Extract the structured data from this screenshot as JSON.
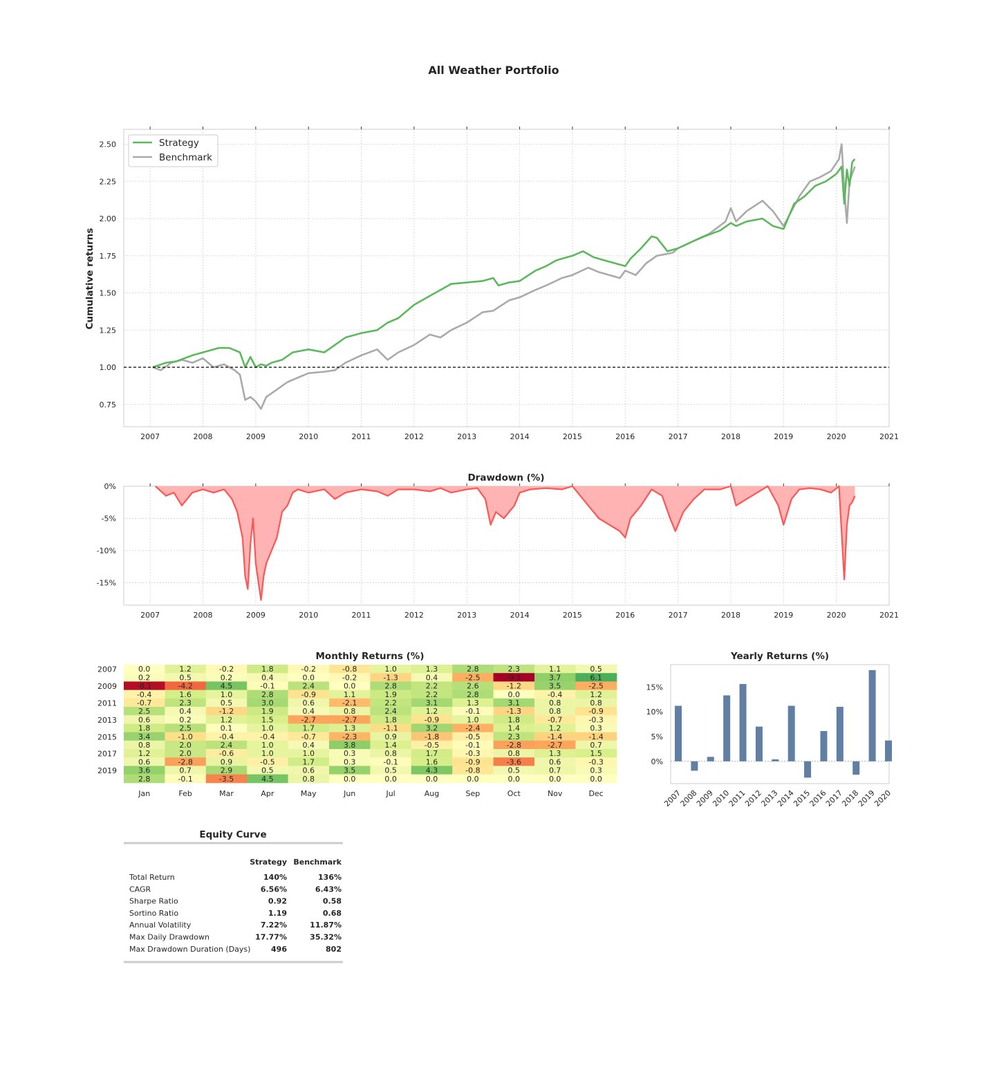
{
  "title": "All Weather Portfolio",
  "colors": {
    "strategy": "#5cb85c",
    "benchmark": "#aaaaaa",
    "drawdown_line": "#ff5555",
    "drawdown_fill": "#ffb3b3",
    "yearly_bar": "#617fa3",
    "strategy_header": "#008000",
    "benchmark_header": "#808080",
    "drawdown_value": "#ff0000"
  },
  "chart_data": [
    {
      "id": "cumulative",
      "type": "line",
      "title": "",
      "ylabel": "Cumulative returns",
      "xlabel": "",
      "xlim": [
        2006.5,
        2021.0
      ],
      "ylim": [
        0.6,
        2.6
      ],
      "xticks": [
        "2007",
        "2008",
        "2009",
        "2010",
        "2011",
        "2012",
        "2013",
        "2014",
        "2015",
        "2016",
        "2017",
        "2018",
        "2019",
        "2020",
        "2021"
      ],
      "yticks": [
        "0.75",
        "1.00",
        "1.25",
        "1.50",
        "1.75",
        "2.00",
        "2.25",
        "2.50"
      ],
      "baseline": 1.0,
      "grid": true,
      "legend": "top-left",
      "series": [
        {
          "name": "Strategy",
          "x": [
            2007.05,
            2007.3,
            2007.5,
            2007.8,
            2008.0,
            2008.3,
            2008.5,
            2008.7,
            2008.8,
            2008.9,
            2009.0,
            2009.1,
            2009.2,
            2009.3,
            2009.5,
            2009.7,
            2010.0,
            2010.3,
            2010.5,
            2010.7,
            2011.0,
            2011.3,
            2011.5,
            2011.7,
            2012.0,
            2012.3,
            2012.5,
            2012.7,
            2013.0,
            2013.3,
            2013.5,
            2013.6,
            2013.8,
            2014.0,
            2014.3,
            2014.5,
            2014.7,
            2015.0,
            2015.2,
            2015.4,
            2015.6,
            2015.8,
            2016.0,
            2016.1,
            2016.3,
            2016.5,
            2016.6,
            2016.8,
            2017.0,
            2017.3,
            2017.5,
            2017.8,
            2018.0,
            2018.1,
            2018.3,
            2018.6,
            2018.8,
            2019.0,
            2019.2,
            2019.4,
            2019.6,
            2019.8,
            2020.0,
            2020.1,
            2020.15,
            2020.2,
            2020.25,
            2020.3,
            2020.35
          ],
          "y": [
            1.0,
            1.03,
            1.04,
            1.08,
            1.1,
            1.13,
            1.13,
            1.1,
            1.0,
            1.07,
            1.0,
            1.02,
            1.01,
            1.03,
            1.05,
            1.1,
            1.12,
            1.1,
            1.15,
            1.2,
            1.23,
            1.25,
            1.3,
            1.33,
            1.42,
            1.48,
            1.52,
            1.56,
            1.57,
            1.58,
            1.6,
            1.55,
            1.57,
            1.58,
            1.65,
            1.68,
            1.72,
            1.75,
            1.78,
            1.74,
            1.72,
            1.7,
            1.68,
            1.73,
            1.8,
            1.88,
            1.87,
            1.78,
            1.8,
            1.85,
            1.88,
            1.92,
            1.97,
            1.95,
            1.98,
            2.0,
            1.95,
            1.93,
            2.1,
            2.15,
            2.22,
            2.25,
            2.3,
            2.35,
            2.1,
            2.33,
            2.22,
            2.38,
            2.4
          ]
        },
        {
          "name": "Benchmark",
          "x": [
            2007.05,
            2007.2,
            2007.4,
            2007.6,
            2007.8,
            2008.0,
            2008.2,
            2008.4,
            2008.6,
            2008.7,
            2008.8,
            2008.9,
            2009.0,
            2009.1,
            2009.2,
            2009.4,
            2009.6,
            2009.8,
            2010.0,
            2010.3,
            2010.5,
            2010.7,
            2011.0,
            2011.3,
            2011.5,
            2011.7,
            2012.0,
            2012.3,
            2012.5,
            2012.7,
            2013.0,
            2013.3,
            2013.5,
            2013.8,
            2014.0,
            2014.3,
            2014.5,
            2014.8,
            2015.0,
            2015.3,
            2015.5,
            2015.7,
            2015.9,
            2016.0,
            2016.2,
            2016.4,
            2016.6,
            2016.9,
            2017.0,
            2017.3,
            2017.6,
            2017.9,
            2018.0,
            2018.1,
            2018.3,
            2018.6,
            2018.8,
            2019.0,
            2019.3,
            2019.5,
            2019.7,
            2019.9,
            2020.05,
            2020.1,
            2020.15,
            2020.2,
            2020.25,
            2020.3,
            2020.35
          ],
          "y": [
            1.0,
            0.98,
            1.03,
            1.05,
            1.03,
            1.06,
            1.0,
            1.02,
            0.98,
            0.95,
            0.78,
            0.8,
            0.77,
            0.72,
            0.8,
            0.85,
            0.9,
            0.93,
            0.96,
            0.97,
            0.98,
            1.03,
            1.08,
            1.12,
            1.05,
            1.1,
            1.15,
            1.22,
            1.2,
            1.25,
            1.3,
            1.37,
            1.38,
            1.45,
            1.47,
            1.52,
            1.55,
            1.6,
            1.62,
            1.67,
            1.64,
            1.62,
            1.6,
            1.65,
            1.62,
            1.7,
            1.75,
            1.77,
            1.8,
            1.85,
            1.9,
            1.98,
            2.07,
            1.98,
            2.05,
            2.12,
            2.05,
            1.95,
            2.15,
            2.25,
            2.28,
            2.32,
            2.4,
            2.5,
            2.2,
            1.97,
            2.25,
            2.3,
            2.35
          ]
        }
      ]
    },
    {
      "id": "drawdown",
      "type": "area",
      "title": "Drawdown (%)",
      "xlim": [
        2006.5,
        2021.0
      ],
      "ylim": [
        -18.5,
        0
      ],
      "xticks": [
        "2007",
        "2008",
        "2009",
        "2010",
        "2011",
        "2012",
        "2013",
        "2014",
        "2015",
        "2016",
        "2017",
        "2018",
        "2019",
        "2020",
        "2021"
      ],
      "yticks": [
        "0%",
        "-5%",
        "-10%",
        "-15%"
      ],
      "grid": true,
      "x": [
        2007.1,
        2007.3,
        2007.45,
        2007.6,
        2007.8,
        2008.0,
        2008.2,
        2008.4,
        2008.55,
        2008.65,
        2008.75,
        2008.8,
        2008.85,
        2008.9,
        2008.95,
        2009.0,
        2009.1,
        2009.15,
        2009.2,
        2009.3,
        2009.4,
        2009.5,
        2009.6,
        2009.7,
        2009.8,
        2010.0,
        2010.3,
        2010.5,
        2010.7,
        2011.0,
        2011.3,
        2011.5,
        2011.7,
        2012.0,
        2012.3,
        2012.5,
        2012.7,
        2013.0,
        2013.2,
        2013.35,
        2013.45,
        2013.55,
        2013.7,
        2013.9,
        2014.0,
        2014.2,
        2014.5,
        2014.8,
        2015.0,
        2015.1,
        2015.3,
        2015.5,
        2015.7,
        2015.9,
        2016.0,
        2016.1,
        2016.3,
        2016.5,
        2016.7,
        2016.85,
        2016.95,
        2017.1,
        2017.3,
        2017.5,
        2017.8,
        2018.0,
        2018.1,
        2018.3,
        2018.5,
        2018.7,
        2018.9,
        2019.0,
        2019.15,
        2019.3,
        2019.5,
        2019.7,
        2019.9,
        2020.05,
        2020.15,
        2020.2,
        2020.25,
        2020.3,
        2020.35
      ],
      "values": [
        0,
        -1.5,
        -1,
        -3,
        -1,
        -0.5,
        -1,
        -0.5,
        -2,
        -4,
        -8,
        -14,
        -16,
        -9,
        -5,
        -12,
        -17.7,
        -14,
        -12,
        -10,
        -8,
        -4,
        -3,
        -1,
        -0.5,
        -1,
        -0.5,
        -2,
        -1,
        -0.5,
        -0.8,
        -1.5,
        -0.5,
        -0.5,
        -0.8,
        -0.3,
        -1.0,
        -0.5,
        -0.3,
        -2,
        -6,
        -4,
        -5,
        -3,
        -1,
        -0.5,
        -0.3,
        -0.5,
        0,
        -1,
        -3,
        -5,
        -6,
        -7,
        -8,
        -5,
        -3,
        -0.5,
        -1.5,
        -5,
        -7,
        -4,
        -2,
        -0.5,
        -0.5,
        0,
        -3,
        -2,
        -1,
        0,
        -3,
        -6,
        -2,
        -0.5,
        -0.3,
        -0.5,
        -1,
        0,
        -14.5,
        -6,
        -3,
        -2.5,
        -1.5
      ]
    },
    {
      "id": "monthly",
      "type": "heatmap",
      "title": "Monthly Returns (%)",
      "columns": [
        "Jan",
        "Feb",
        "Mar",
        "Apr",
        "May",
        "Jun",
        "Jul",
        "Aug",
        "Sep",
        "Oct",
        "Nov",
        "Dec"
      ],
      "row_labels": [
        "2007",
        "",
        "2009",
        "",
        "2011",
        "",
        "2013",
        "",
        "2015",
        "",
        "2017",
        "",
        "2019",
        ""
      ],
      "values": [
        [
          0.0,
          1.2,
          -0.2,
          1.8,
          -0.2,
          -0.8,
          1.0,
          1.3,
          2.8,
          2.3,
          1.1,
          0.5
        ],
        [
          0.2,
          0.5,
          0.2,
          0.4,
          0.0,
          -0.2,
          -1.3,
          0.4,
          -2.5,
          -9.1,
          3.7,
          6.1
        ],
        [
          -8.1,
          -4.2,
          4.5,
          -0.1,
          2.4,
          -0.0,
          2.8,
          2.2,
          2.6,
          -1.2,
          3.5,
          -2.5
        ],
        [
          -0.4,
          1.6,
          1.0,
          2.8,
          -0.9,
          1.1,
          1.9,
          2.2,
          2.8,
          0.0,
          -0.4,
          1.2
        ],
        [
          -0.7,
          2.3,
          0.5,
          3.0,
          0.6,
          -2.1,
          2.2,
          3.1,
          1.3,
          3.1,
          0.8,
          0.8
        ],
        [
          2.5,
          0.4,
          -1.2,
          1.9,
          0.4,
          0.8,
          2.4,
          1.2,
          -0.1,
          -1.3,
          0.8,
          -0.9
        ],
        [
          0.6,
          0.2,
          1.2,
          1.5,
          -2.7,
          -2.7,
          1.8,
          -0.9,
          1.0,
          1.8,
          -0.7,
          -0.3
        ],
        [
          1.8,
          2.5,
          0.1,
          1.0,
          1.7,
          1.3,
          -1.1,
          3.2,
          -2.4,
          1.4,
          1.2,
          0.3
        ],
        [
          3.4,
          -1.0,
          -0.4,
          -0.4,
          -0.7,
          -2.3,
          0.9,
          -1.8,
          -0.5,
          2.3,
          -1.4,
          -1.4
        ],
        [
          0.8,
          2.0,
          2.4,
          1.0,
          0.4,
          3.8,
          1.4,
          -0.5,
          -0.1,
          -2.8,
          -2.7,
          0.7
        ],
        [
          1.2,
          2.0,
          -0.6,
          1.0,
          1.0,
          0.3,
          0.8,
          1.7,
          -0.3,
          0.8,
          1.3,
          1.5
        ],
        [
          0.6,
          -2.8,
          0.9,
          -0.5,
          1.7,
          0.3,
          -0.1,
          1.6,
          -0.9,
          -3.6,
          0.6,
          -0.3
        ],
        [
          3.6,
          0.7,
          2.9,
          0.5,
          0.6,
          3.5,
          0.5,
          4.3,
          -0.8,
          0.5,
          0.7,
          0.3
        ],
        [
          2.8,
          -0.1,
          -3.5,
          4.5,
          0.8,
          0.0,
          0.0,
          0.0,
          0.0,
          0.0,
          0.0,
          0.0
        ]
      ]
    },
    {
      "id": "yearly",
      "type": "bar",
      "title": "Yearly Returns (%)",
      "categories": [
        "2007",
        "2008",
        "2009",
        "2010",
        "2011",
        "2012",
        "2013",
        "2014",
        "2015",
        "2016",
        "2017",
        "2018",
        "2019",
        "2020"
      ],
      "values": [
        11.2,
        -1.9,
        0.9,
        13.3,
        15.6,
        7.0,
        0.4,
        11.2,
        -3.3,
        6.1,
        11.0,
        -2.7,
        18.4,
        4.2
      ],
      "ylim": [
        -4.5,
        19.5
      ],
      "yticks": [
        "0%",
        "5%",
        "10%",
        "15%"
      ]
    }
  ],
  "stats_table": {
    "title": "Equity Curve",
    "headers": [
      "",
      "Strategy",
      "Benchmark"
    ],
    "rows": [
      {
        "label": "Total Return",
        "strategy": "140%",
        "benchmark": "136%"
      },
      {
        "label": "CAGR",
        "strategy": "6.56%",
        "benchmark": "6.43%"
      },
      {
        "label": "Sharpe Ratio",
        "strategy": "0.92",
        "benchmark": "0.58"
      },
      {
        "label": "Sortino Ratio",
        "strategy": "1.19",
        "benchmark": "0.68"
      },
      {
        "label": "Annual Volatility",
        "strategy": "7.22%",
        "benchmark": "11.87%"
      },
      {
        "label": "Max Daily Drawdown",
        "strategy": "17.77%",
        "benchmark": "35.32%"
      },
      {
        "label": "Max Drawdown Duration (Days)",
        "strategy": "496",
        "benchmark": "802"
      }
    ]
  }
}
